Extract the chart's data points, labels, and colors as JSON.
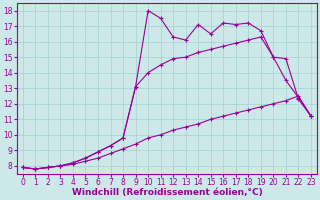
{
  "xlabel": "Windchill (Refroidissement éolien,°C)",
  "background_color": "#cce8e8",
  "line_color": "#990099",
  "xlim": [
    -0.5,
    23.5
  ],
  "ylim": [
    7.5,
    18.5
  ],
  "xticks": [
    0,
    1,
    2,
    3,
    4,
    5,
    6,
    7,
    8,
    9,
    10,
    11,
    12,
    13,
    14,
    15,
    16,
    17,
    18,
    19,
    20,
    21,
    22,
    23
  ],
  "yticks": [
    8,
    9,
    10,
    11,
    12,
    13,
    14,
    15,
    16,
    17,
    18
  ],
  "curve1_x": [
    0,
    1,
    2,
    3,
    4,
    5,
    6,
    7,
    8,
    9,
    10,
    11,
    12,
    13,
    14,
    15,
    16,
    17,
    18,
    19,
    20,
    21,
    22,
    23
  ],
  "curve1_y": [
    7.9,
    7.8,
    7.9,
    8.0,
    8.1,
    8.3,
    8.5,
    8.8,
    9.1,
    9.4,
    9.8,
    10.0,
    10.3,
    10.5,
    10.7,
    11.0,
    11.2,
    11.4,
    11.6,
    11.8,
    12.0,
    12.2,
    12.5,
    11.2
  ],
  "curve2_x": [
    0,
    1,
    2,
    3,
    4,
    5,
    6,
    7,
    8,
    9,
    10,
    11,
    12,
    13,
    14,
    15,
    16,
    17,
    18,
    19,
    20,
    21,
    22,
    23
  ],
  "curve2_y": [
    7.9,
    7.8,
    7.9,
    8.0,
    8.2,
    8.5,
    8.9,
    9.3,
    9.8,
    13.1,
    14.0,
    14.5,
    14.9,
    15.0,
    15.3,
    15.5,
    15.7,
    15.9,
    16.1,
    16.3,
    15.0,
    13.5,
    12.4,
    11.2
  ],
  "curve3_x": [
    0,
    1,
    2,
    3,
    4,
    5,
    6,
    7,
    8,
    9,
    10,
    11,
    12,
    13,
    14,
    15,
    16,
    17,
    18,
    19,
    20,
    21,
    22,
    23
  ],
  "curve3_y": [
    7.9,
    7.8,
    7.9,
    8.0,
    8.2,
    8.5,
    8.9,
    9.3,
    9.8,
    13.1,
    18.0,
    17.5,
    16.3,
    16.1,
    17.1,
    16.5,
    17.2,
    17.1,
    17.2,
    16.7,
    15.0,
    14.9,
    12.3,
    11.2
  ],
  "grid_color": "#aad4d4",
  "tick_fontsize": 5.5,
  "xlabel_fontsize": 6.5
}
